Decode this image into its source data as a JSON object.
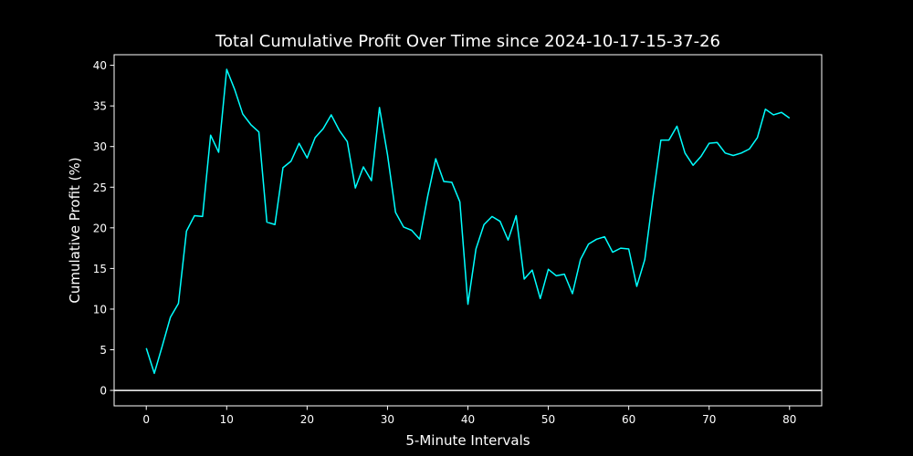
{
  "chart_data": {
    "type": "line",
    "title": "Total Cumulative Profit Over Time since 2024-10-17-15-37-26",
    "xlabel": "5-Minute Intervals",
    "ylabel": "Cumulative Profit (%)",
    "xlim": [
      -4,
      84
    ],
    "ylim": [
      -1.9,
      41.3
    ],
    "xticks": [
      0,
      10,
      20,
      30,
      40,
      50,
      60,
      70,
      80
    ],
    "yticks": [
      0,
      5,
      10,
      15,
      20,
      25,
      30,
      35,
      40
    ],
    "grid": false,
    "reference_line_y": 0,
    "colors": {
      "background": "#000000",
      "series": "#00ffff",
      "axes": "#ffffff",
      "reference_line": "#ffffff"
    },
    "x": [
      0,
      1,
      2,
      3,
      4,
      5,
      6,
      7,
      8,
      9,
      10,
      11,
      12,
      13,
      14,
      15,
      16,
      17,
      18,
      19,
      20,
      21,
      22,
      23,
      24,
      25,
      26,
      27,
      28,
      29,
      30,
      31,
      32,
      33,
      34,
      35,
      36,
      37,
      38,
      39,
      40,
      41,
      42,
      43,
      44,
      45,
      46,
      47,
      48,
      49,
      50,
      51,
      52,
      53,
      54,
      55,
      56,
      57,
      58,
      59,
      60,
      61,
      62,
      63,
      64,
      65,
      66,
      67,
      68,
      69,
      70,
      71,
      72,
      73,
      74,
      75,
      76,
      77,
      78,
      79,
      80
    ],
    "series": [
      {
        "values": [
          5.2,
          2.1,
          5.5,
          9.0,
          10.7,
          19.6,
          21.5,
          21.4,
          31.4,
          29.3,
          39.5,
          37.0,
          34.0,
          32.7,
          31.8,
          20.7,
          20.4,
          27.4,
          28.2,
          30.4,
          28.6,
          31.1,
          32.2,
          33.9,
          32.0,
          30.6,
          24.9,
          27.5,
          25.8,
          34.8,
          29.0,
          21.9,
          20.1,
          19.7,
          18.6,
          23.9,
          28.5,
          25.7,
          25.6,
          23.2,
          10.6,
          17.4,
          20.4,
          21.4,
          20.8,
          18.5,
          21.5,
          13.7,
          14.8,
          11.3,
          14.9,
          14.1,
          14.3,
          11.9,
          16.1,
          18.0,
          18.6,
          18.9,
          17.0,
          17.5,
          17.4,
          12.8,
          16.1,
          23.7,
          30.8,
          30.8,
          32.5,
          29.2,
          27.7,
          28.8,
          30.4,
          30.5,
          29.2,
          28.9,
          29.2,
          29.7,
          31.1,
          34.6,
          33.9,
          34.2,
          33.5
        ]
      }
    ]
  }
}
